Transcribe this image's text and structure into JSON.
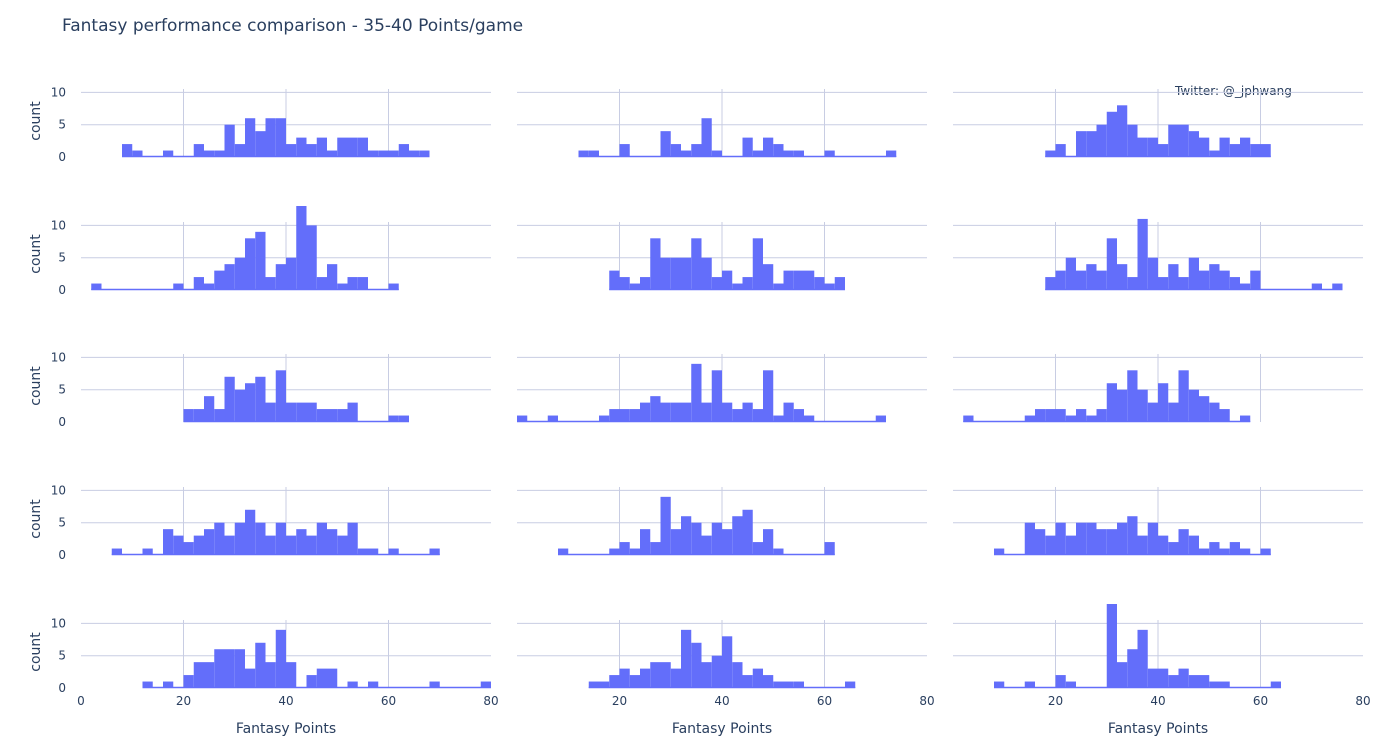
{
  "chart_data": {
    "type": "bar",
    "title": "Fantasy performance comparison - 35-40 Points/game",
    "annotation": "Twitter: @_jphwang",
    "xlabel": "Fantasy Points",
    "ylabel": "count",
    "xlim": [
      0,
      80
    ],
    "ylim": [
      0,
      13
    ],
    "xticks": [
      0,
      20,
      40,
      60,
      80
    ],
    "yticks": [
      0,
      5,
      10
    ],
    "bin_width": 2,
    "bar_color": "#636efa",
    "grid": true,
    "panels": [
      {
        "values": [
          [
            8,
            2
          ],
          [
            10,
            1
          ],
          [
            16,
            1
          ],
          [
            22,
            2
          ],
          [
            24,
            1
          ],
          [
            26,
            1
          ],
          [
            28,
            5
          ],
          [
            30,
            2
          ],
          [
            32,
            6
          ],
          [
            34,
            4
          ],
          [
            36,
            6
          ],
          [
            38,
            6
          ],
          [
            40,
            2
          ],
          [
            42,
            3
          ],
          [
            44,
            2
          ],
          [
            46,
            3
          ],
          [
            48,
            1
          ],
          [
            50,
            3
          ],
          [
            52,
            3
          ],
          [
            54,
            3
          ],
          [
            56,
            1
          ],
          [
            58,
            1
          ],
          [
            60,
            1
          ],
          [
            62,
            2
          ],
          [
            64,
            1
          ],
          [
            66,
            1
          ]
        ]
      },
      {
        "values": [
          [
            12,
            1
          ],
          [
            14,
            1
          ],
          [
            20,
            2
          ],
          [
            28,
            4
          ],
          [
            30,
            2
          ],
          [
            32,
            1
          ],
          [
            34,
            2
          ],
          [
            36,
            6
          ],
          [
            38,
            1
          ],
          [
            44,
            3
          ],
          [
            46,
            1
          ],
          [
            48,
            3
          ],
          [
            50,
            2
          ],
          [
            52,
            1
          ],
          [
            54,
            1
          ],
          [
            60,
            1
          ],
          [
            72,
            1
          ]
        ]
      },
      {
        "values": [
          [
            18,
            1
          ],
          [
            20,
            2
          ],
          [
            24,
            4
          ],
          [
            26,
            4
          ],
          [
            28,
            5
          ],
          [
            30,
            7
          ],
          [
            32,
            8
          ],
          [
            34,
            5
          ],
          [
            36,
            3
          ],
          [
            38,
            3
          ],
          [
            40,
            2
          ],
          [
            42,
            5
          ],
          [
            44,
            5
          ],
          [
            46,
            4
          ],
          [
            48,
            3
          ],
          [
            50,
            1
          ],
          [
            52,
            3
          ],
          [
            54,
            2
          ],
          [
            56,
            3
          ],
          [
            58,
            2
          ],
          [
            60,
            2
          ]
        ]
      },
      {
        "values": [
          [
            2,
            1
          ],
          [
            18,
            1
          ],
          [
            22,
            2
          ],
          [
            24,
            1
          ],
          [
            26,
            3
          ],
          [
            28,
            4
          ],
          [
            30,
            5
          ],
          [
            32,
            8
          ],
          [
            34,
            9
          ],
          [
            36,
            2
          ],
          [
            38,
            4
          ],
          [
            40,
            5
          ],
          [
            42,
            13
          ],
          [
            44,
            10
          ],
          [
            46,
            2
          ],
          [
            48,
            4
          ],
          [
            50,
            1
          ],
          [
            52,
            2
          ],
          [
            54,
            2
          ],
          [
            60,
            1
          ]
        ]
      },
      {
        "values": [
          [
            18,
            3
          ],
          [
            20,
            2
          ],
          [
            22,
            1
          ],
          [
            24,
            2
          ],
          [
            26,
            8
          ],
          [
            28,
            5
          ],
          [
            30,
            5
          ],
          [
            32,
            5
          ],
          [
            34,
            8
          ],
          [
            36,
            5
          ],
          [
            38,
            2
          ],
          [
            40,
            3
          ],
          [
            42,
            1
          ],
          [
            44,
            2
          ],
          [
            46,
            8
          ],
          [
            48,
            4
          ],
          [
            50,
            1
          ],
          [
            52,
            3
          ],
          [
            54,
            3
          ],
          [
            56,
            3
          ],
          [
            58,
            2
          ],
          [
            60,
            1
          ],
          [
            62,
            2
          ]
        ]
      },
      {
        "values": [
          [
            18,
            2
          ],
          [
            20,
            3
          ],
          [
            22,
            5
          ],
          [
            24,
            3
          ],
          [
            26,
            4
          ],
          [
            28,
            3
          ],
          [
            30,
            8
          ],
          [
            32,
            4
          ],
          [
            34,
            2
          ],
          [
            36,
            11
          ],
          [
            38,
            5
          ],
          [
            40,
            2
          ],
          [
            42,
            4
          ],
          [
            44,
            2
          ],
          [
            46,
            5
          ],
          [
            48,
            3
          ],
          [
            50,
            4
          ],
          [
            52,
            3
          ],
          [
            54,
            2
          ],
          [
            56,
            1
          ],
          [
            58,
            3
          ],
          [
            70,
            1
          ],
          [
            74,
            1
          ]
        ]
      },
      {
        "values": [
          [
            20,
            2
          ],
          [
            22,
            2
          ],
          [
            24,
            4
          ],
          [
            26,
            2
          ],
          [
            28,
            7
          ],
          [
            30,
            5
          ],
          [
            32,
            6
          ],
          [
            34,
            7
          ],
          [
            36,
            3
          ],
          [
            38,
            8
          ],
          [
            40,
            3
          ],
          [
            42,
            3
          ],
          [
            44,
            3
          ],
          [
            46,
            2
          ],
          [
            48,
            2
          ],
          [
            50,
            2
          ],
          [
            52,
            3
          ],
          [
            60,
            1
          ],
          [
            62,
            1
          ]
        ]
      },
      {
        "values": [
          [
            0,
            1
          ],
          [
            6,
            1
          ],
          [
            16,
            1
          ],
          [
            18,
            2
          ],
          [
            20,
            2
          ],
          [
            22,
            2
          ],
          [
            24,
            3
          ],
          [
            26,
            4
          ],
          [
            28,
            3
          ],
          [
            30,
            3
          ],
          [
            32,
            3
          ],
          [
            34,
            9
          ],
          [
            36,
            3
          ],
          [
            38,
            8
          ],
          [
            40,
            3
          ],
          [
            42,
            2
          ],
          [
            44,
            3
          ],
          [
            46,
            2
          ],
          [
            48,
            8
          ],
          [
            50,
            1
          ],
          [
            52,
            3
          ],
          [
            54,
            2
          ],
          [
            56,
            1
          ],
          [
            70,
            1
          ]
        ]
      },
      {
        "values": [
          [
            2,
            1
          ],
          [
            14,
            1
          ],
          [
            16,
            2
          ],
          [
            18,
            2
          ],
          [
            20,
            2
          ],
          [
            22,
            1
          ],
          [
            24,
            2
          ],
          [
            26,
            1
          ],
          [
            28,
            2
          ],
          [
            30,
            6
          ],
          [
            32,
            5
          ],
          [
            34,
            8
          ],
          [
            36,
            5
          ],
          [
            38,
            3
          ],
          [
            40,
            6
          ],
          [
            42,
            3
          ],
          [
            44,
            8
          ],
          [
            46,
            5
          ],
          [
            48,
            4
          ],
          [
            50,
            3
          ],
          [
            52,
            2
          ],
          [
            56,
            1
          ]
        ]
      },
      {
        "values": [
          [
            6,
            1
          ],
          [
            12,
            1
          ],
          [
            16,
            4
          ],
          [
            18,
            3
          ],
          [
            20,
            2
          ],
          [
            22,
            3
          ],
          [
            24,
            4
          ],
          [
            26,
            5
          ],
          [
            28,
            3
          ],
          [
            30,
            5
          ],
          [
            32,
            7
          ],
          [
            34,
            5
          ],
          [
            36,
            3
          ],
          [
            38,
            5
          ],
          [
            40,
            3
          ],
          [
            42,
            4
          ],
          [
            44,
            3
          ],
          [
            46,
            5
          ],
          [
            48,
            4
          ],
          [
            50,
            3
          ],
          [
            52,
            5
          ],
          [
            54,
            1
          ],
          [
            56,
            1
          ],
          [
            60,
            1
          ],
          [
            68,
            1
          ]
        ]
      },
      {
        "values": [
          [
            8,
            1
          ],
          [
            18,
            1
          ],
          [
            20,
            2
          ],
          [
            22,
            1
          ],
          [
            24,
            4
          ],
          [
            26,
            2
          ],
          [
            28,
            9
          ],
          [
            30,
            4
          ],
          [
            32,
            6
          ],
          [
            34,
            5
          ],
          [
            36,
            3
          ],
          [
            38,
            5
          ],
          [
            40,
            4
          ],
          [
            42,
            6
          ],
          [
            44,
            7
          ],
          [
            46,
            2
          ],
          [
            48,
            4
          ],
          [
            50,
            1
          ],
          [
            60,
            2
          ]
        ]
      },
      {
        "values": [
          [
            8,
            1
          ],
          [
            14,
            5
          ],
          [
            16,
            4
          ],
          [
            18,
            3
          ],
          [
            20,
            5
          ],
          [
            22,
            3
          ],
          [
            24,
            5
          ],
          [
            26,
            5
          ],
          [
            28,
            4
          ],
          [
            30,
            4
          ],
          [
            32,
            5
          ],
          [
            34,
            6
          ],
          [
            36,
            3
          ],
          [
            38,
            5
          ],
          [
            40,
            3
          ],
          [
            42,
            2
          ],
          [
            44,
            4
          ],
          [
            46,
            3
          ],
          [
            48,
            1
          ],
          [
            50,
            2
          ],
          [
            52,
            1
          ],
          [
            54,
            2
          ],
          [
            56,
            1
          ],
          [
            60,
            1
          ]
        ]
      },
      {
        "values": [
          [
            12,
            1
          ],
          [
            16,
            1
          ],
          [
            20,
            2
          ],
          [
            22,
            4
          ],
          [
            24,
            4
          ],
          [
            26,
            6
          ],
          [
            28,
            6
          ],
          [
            30,
            6
          ],
          [
            32,
            3
          ],
          [
            34,
            7
          ],
          [
            36,
            4
          ],
          [
            38,
            9
          ],
          [
            40,
            4
          ],
          [
            44,
            2
          ],
          [
            46,
            3
          ],
          [
            48,
            3
          ],
          [
            52,
            1
          ],
          [
            56,
            1
          ],
          [
            68,
            1
          ],
          [
            78,
            1
          ]
        ]
      },
      {
        "values": [
          [
            14,
            1
          ],
          [
            16,
            1
          ],
          [
            18,
            2
          ],
          [
            20,
            3
          ],
          [
            22,
            2
          ],
          [
            24,
            3
          ],
          [
            26,
            4
          ],
          [
            28,
            4
          ],
          [
            30,
            3
          ],
          [
            32,
            9
          ],
          [
            34,
            7
          ],
          [
            36,
            4
          ],
          [
            38,
            5
          ],
          [
            40,
            8
          ],
          [
            42,
            4
          ],
          [
            44,
            2
          ],
          [
            46,
            3
          ],
          [
            48,
            2
          ],
          [
            50,
            1
          ],
          [
            52,
            1
          ],
          [
            54,
            1
          ],
          [
            64,
            1
          ]
        ]
      },
      {
        "values": [
          [
            8,
            1
          ],
          [
            14,
            1
          ],
          [
            20,
            2
          ],
          [
            22,
            1
          ],
          [
            30,
            13
          ],
          [
            32,
            4
          ],
          [
            34,
            6
          ],
          [
            36,
            9
          ],
          [
            38,
            3
          ],
          [
            40,
            3
          ],
          [
            42,
            2
          ],
          [
            44,
            3
          ],
          [
            46,
            2
          ],
          [
            48,
            2
          ],
          [
            50,
            1
          ],
          [
            52,
            1
          ],
          [
            62,
            1
          ]
        ]
      }
    ]
  }
}
